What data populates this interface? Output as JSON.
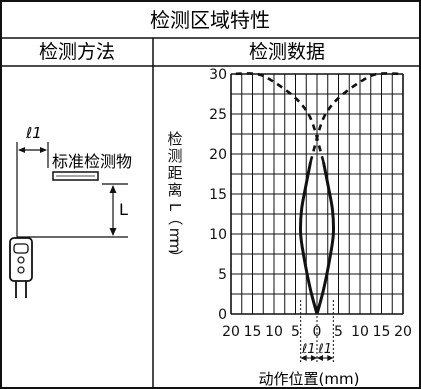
{
  "table": {
    "title": "检测区域特性",
    "col_method": "检测方法",
    "col_data": "检测数据"
  },
  "method": {
    "l1_label": "ℓ1",
    "object_label": "标准检测物",
    "distance_label": "L"
  },
  "chart_data": {
    "type": "line",
    "xlabel": "动作位置(mm)",
    "ylabel": "检测距离L（mm）",
    "x_ticks": [
      "20",
      "15",
      "10",
      "5",
      "0",
      "5",
      "10",
      "15",
      "20"
    ],
    "y_ticks": [
      "0",
      "5",
      "10",
      "15",
      "20",
      "25",
      "30"
    ],
    "xlim": [
      -20,
      20
    ],
    "ylim": [
      0,
      30
    ],
    "grid": true,
    "series": [
      {
        "style": "solid",
        "points": [
          [
            0,
            0
          ],
          [
            -1.5,
            3
          ],
          [
            -3,
            7
          ],
          [
            -3.8,
            10
          ],
          [
            -3.6,
            13
          ],
          [
            -2.6,
            16
          ],
          [
            -1.5,
            19
          ]
        ]
      },
      {
        "style": "solid",
        "points": [
          [
            0,
            0
          ],
          [
            1.5,
            3
          ],
          [
            3,
            7
          ],
          [
            3.8,
            10
          ],
          [
            3.6,
            13
          ],
          [
            2.6,
            16
          ],
          [
            1.5,
            19
          ]
        ]
      },
      {
        "style": "dashed",
        "points": [
          [
            -1.5,
            19
          ],
          [
            -0.5,
            21
          ],
          [
            0,
            22
          ],
          [
            0.5,
            23
          ],
          [
            2,
            25
          ],
          [
            5,
            27
          ],
          [
            10,
            29
          ],
          [
            14,
            30
          ],
          [
            20,
            30
          ]
        ]
      },
      {
        "style": "dashed",
        "points": [
          [
            1.5,
            19
          ],
          [
            0.5,
            21
          ],
          [
            0,
            22
          ],
          [
            -0.5,
            23
          ],
          [
            -2,
            25
          ],
          [
            -5,
            27
          ],
          [
            -10,
            29
          ],
          [
            -14,
            30
          ],
          [
            -20,
            30
          ]
        ]
      }
    ],
    "annotation": {
      "l1_left": "ℓ1",
      "l1_right": "ℓ1",
      "range_x": [
        -3.8,
        3.8
      ]
    }
  },
  "colors": {
    "ink": "#111111",
    "background": "#ffffff"
  }
}
